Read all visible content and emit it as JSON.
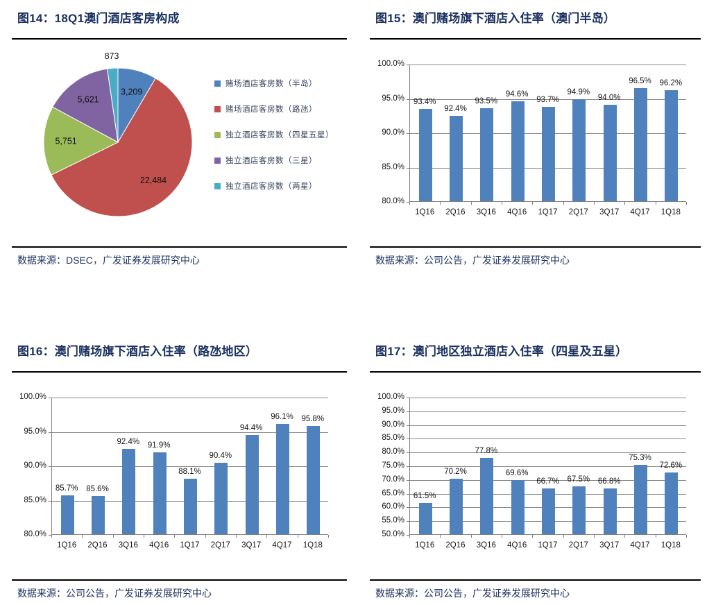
{
  "page": {
    "background": "#ffffff"
  },
  "colors": {
    "title_text": "#1b3160",
    "source_text": "#1b3160",
    "rule": "#000000",
    "axis": "#808080",
    "gridline": "#898989",
    "label_text": "#151515",
    "bar_blue": "#4f81bd"
  },
  "chart_data": [
    {
      "type": "pie",
      "title": "图14：18Q1澳门酒店客房构成",
      "source": "数据来源：DSEC，广发证券发展研究中心",
      "labels": [
        "赌场酒店客房数（半岛）",
        "赌场酒店客房数（路氹）",
        "独立酒店客房数（四星五星）",
        "独立酒店客房数（三星）",
        "独立酒店客房数（两星）"
      ],
      "values": [
        3209,
        22484,
        5751,
        5621,
        873
      ],
      "value_labels": [
        "3,209",
        "22,484",
        "5,751",
        "5,621",
        "873"
      ],
      "slice_colors": [
        "#4f81bd",
        "#c0504d",
        "#9bbb59",
        "#8064a2",
        "#4bacc6"
      ],
      "legend_position": "right",
      "start_angle_deg": 0,
      "direction": "clockwise"
    },
    {
      "type": "bar",
      "title": "图15：澳门赌场旗下酒店入住率（澳门半岛）",
      "source": "数据来源：公司公告，广发证券发展研究中心",
      "categories": [
        "1Q16",
        "2Q16",
        "3Q16",
        "4Q16",
        "1Q17",
        "2Q17",
        "3Q17",
        "4Q17",
        "1Q18"
      ],
      "values": [
        93.4,
        92.4,
        93.5,
        94.6,
        93.7,
        94.9,
        94.0,
        96.5,
        96.2
      ],
      "value_labels": [
        "93.4%",
        "92.4%",
        "93.5%",
        "94.6%",
        "93.7%",
        "94.9%",
        "94.0%",
        "96.5%",
        "96.2%"
      ],
      "ylim": [
        80,
        100
      ],
      "ytick_step": 5,
      "ytick_format": "percent1",
      "bar_color": "#4f81bd",
      "grid": true,
      "legend": null
    },
    {
      "type": "bar",
      "title": "图16：澳门赌场旗下酒店入住率（路氹地区）",
      "source": "数据来源：公司公告，广发证券发展研究中心",
      "categories": [
        "1Q16",
        "2Q16",
        "3Q16",
        "4Q16",
        "1Q17",
        "2Q17",
        "3Q17",
        "4Q17",
        "1Q18"
      ],
      "values": [
        85.7,
        85.6,
        92.4,
        91.9,
        88.1,
        90.4,
        94.4,
        96.1,
        95.8
      ],
      "value_labels": [
        "85.7%",
        "85.6%",
        "92.4%",
        "91.9%",
        "88.1%",
        "90.4%",
        "94.4%",
        "96.1%",
        "95.8%"
      ],
      "ylim": [
        80,
        100
      ],
      "ytick_step": 5,
      "ytick_format": "percent1",
      "bar_color": "#4f81bd",
      "grid": true,
      "legend": null
    },
    {
      "type": "bar",
      "title": "图17：澳门地区独立酒店入住率（四星及五星）",
      "source": "数据来源：公司公告，广发证券发展研究中心",
      "categories": [
        "1Q16",
        "2Q16",
        "3Q16",
        "4Q16",
        "1Q17",
        "2Q17",
        "3Q17",
        "4Q17",
        "1Q18"
      ],
      "values": [
        61.5,
        70.2,
        77.8,
        69.6,
        66.7,
        67.5,
        66.8,
        75.3,
        72.6
      ],
      "value_labels": [
        "61.5%",
        "70.2%",
        "77.8%",
        "69.6%",
        "66.7%",
        "67.5%",
        "66.8%",
        "75.3%",
        "72.6%"
      ],
      "ylim": [
        50,
        100
      ],
      "ytick_step": 5,
      "ytick_format": "percent1",
      "bar_color": "#4f81bd",
      "grid": true,
      "legend": null
    }
  ]
}
